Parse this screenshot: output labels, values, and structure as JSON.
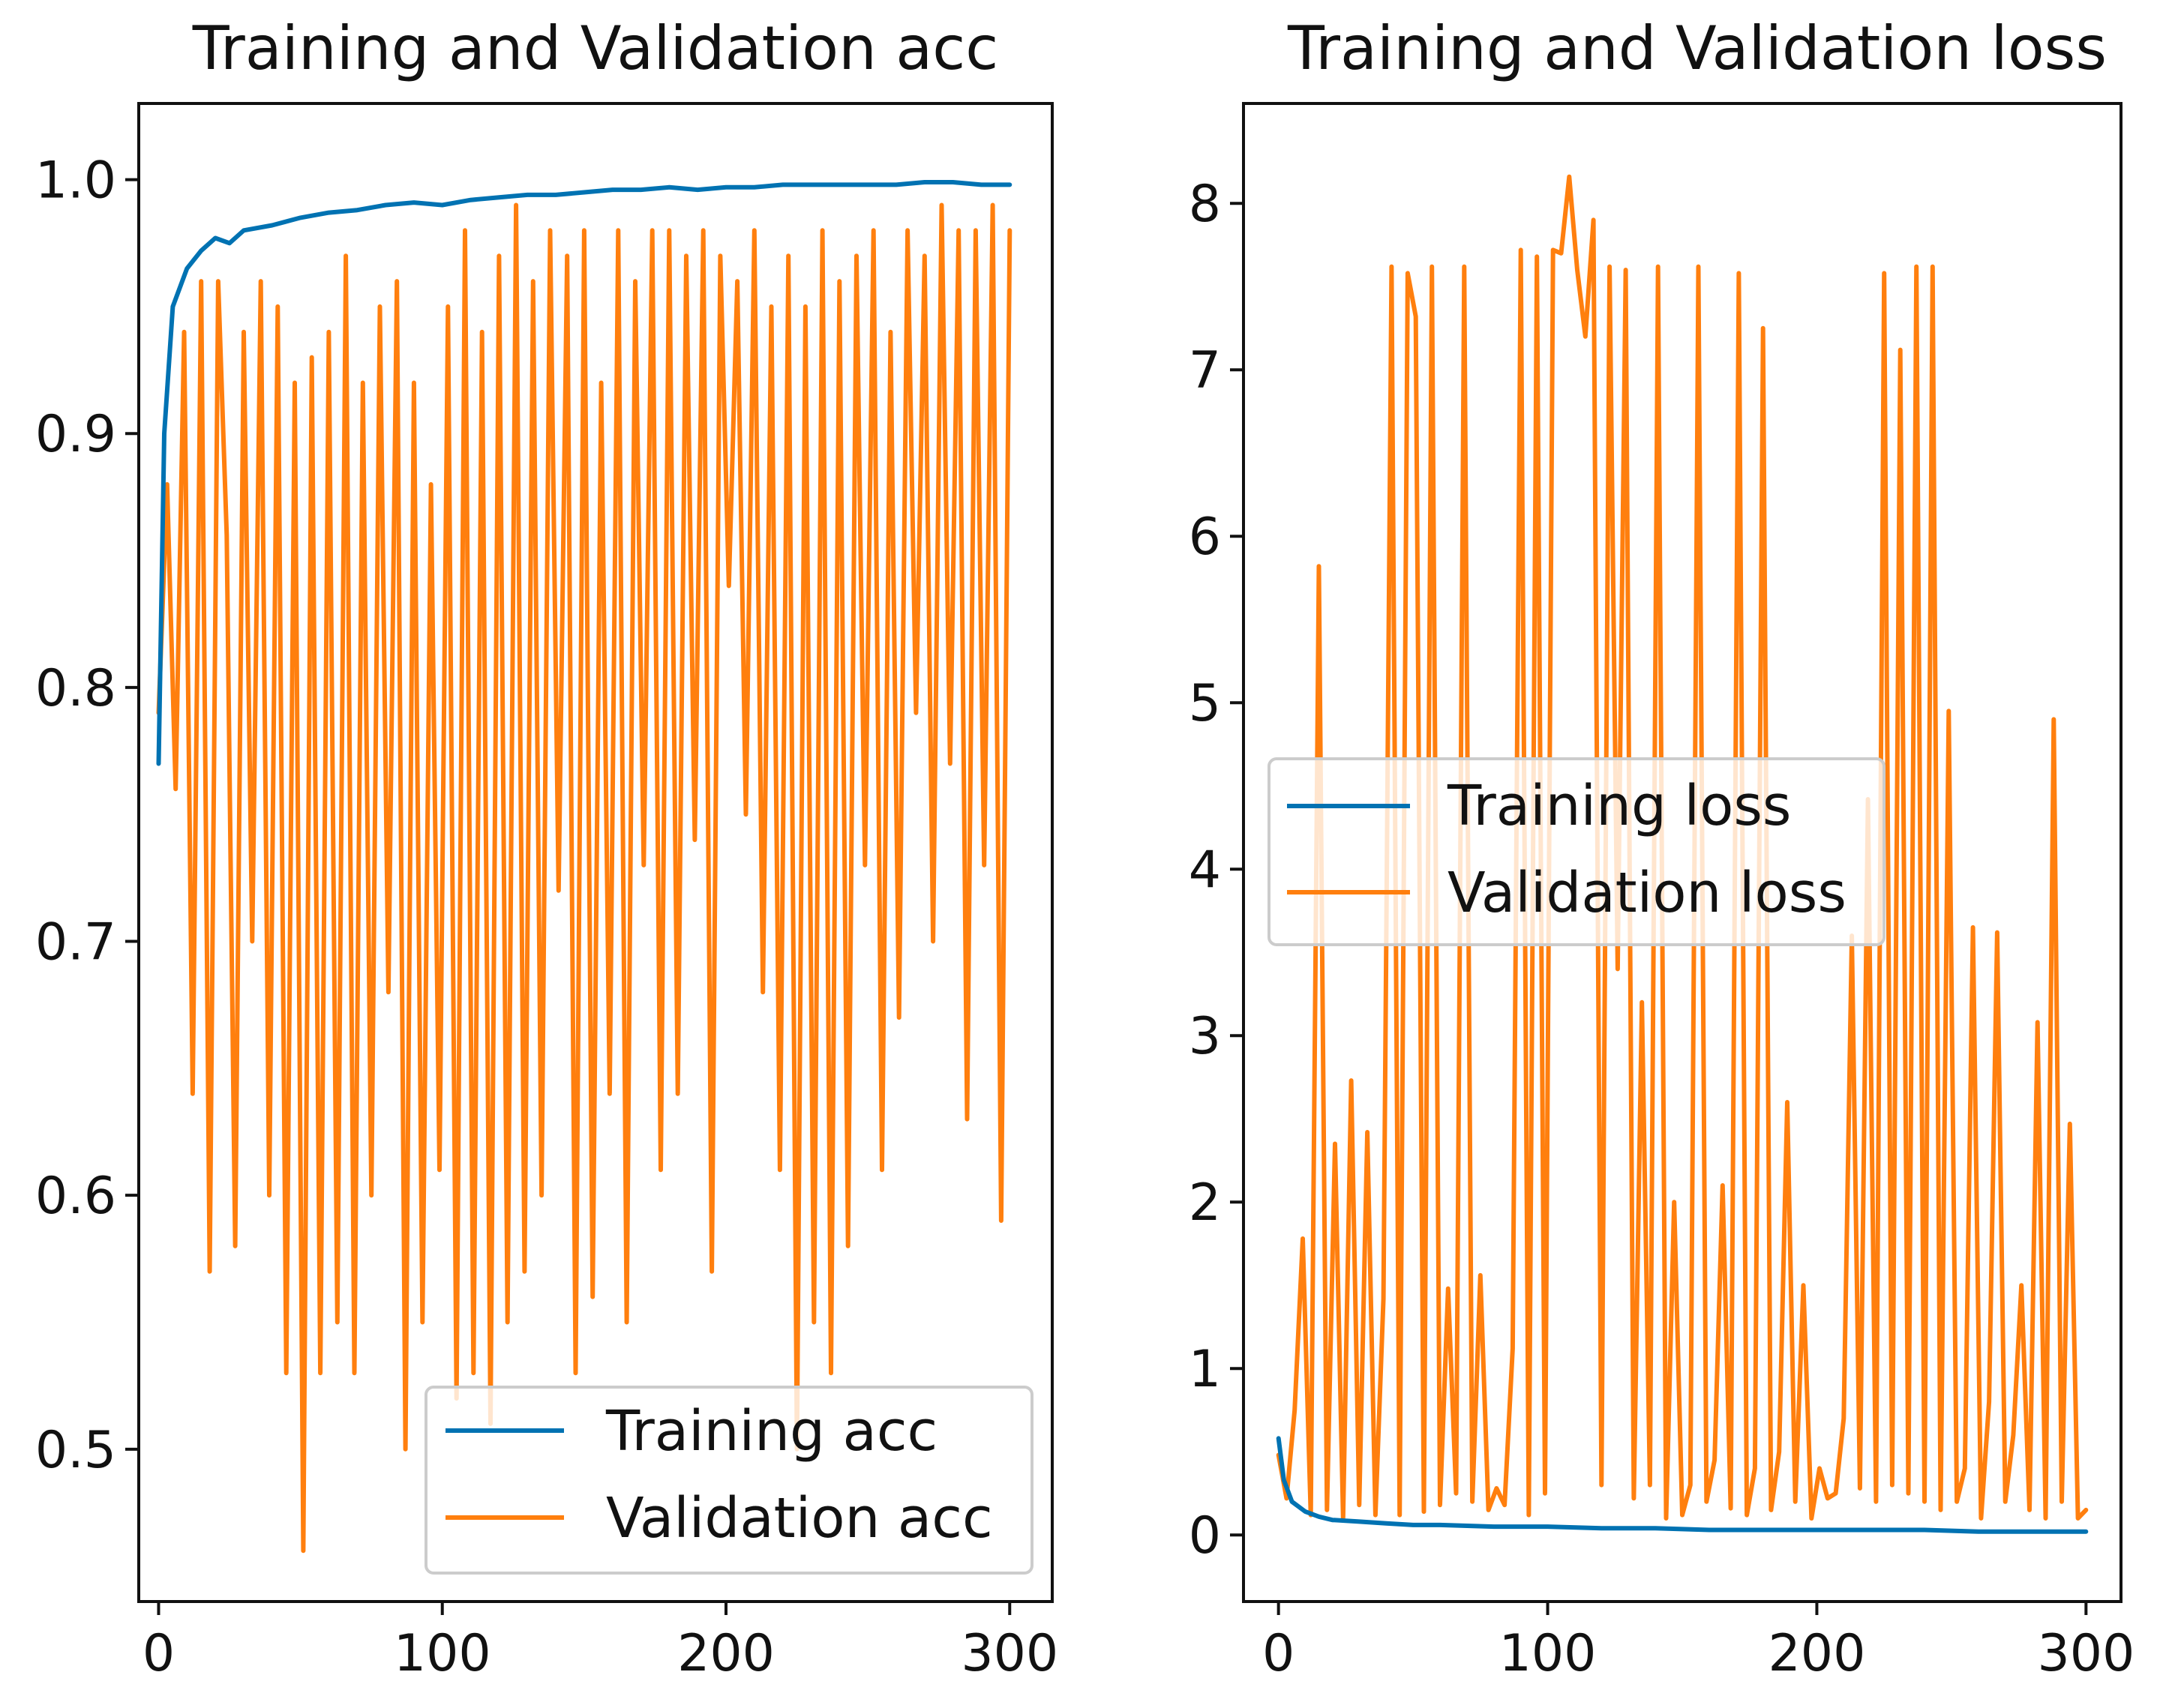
{
  "colors": {
    "training": "#0072b2",
    "validation": "#ff7f0e",
    "axes": "#111111"
  },
  "chart_data": [
    {
      "type": "line",
      "title": "Training and Validation acc",
      "xlabel": "",
      "ylabel": "",
      "xlim": [
        -7,
        315
      ],
      "ylim": [
        0.44,
        1.03
      ],
      "xticks": [
        0,
        100,
        200,
        300
      ],
      "xtick_labels": [
        "0",
        "100",
        "200",
        "300"
      ],
      "yticks": [
        0.5,
        0.6,
        0.7,
        0.8,
        0.9,
        1.0
      ],
      "ytick_labels": [
        "0.5",
        "0.6",
        "0.7",
        "0.8",
        "0.9",
        "1.0"
      ],
      "legend_position": "lower-right",
      "series": [
        {
          "name": "Training acc",
          "x": [
            0,
            2,
            5,
            10,
            15,
            20,
            25,
            30,
            40,
            50,
            60,
            70,
            80,
            90,
            100,
            110,
            120,
            130,
            140,
            150,
            160,
            170,
            180,
            190,
            200,
            210,
            220,
            230,
            240,
            250,
            260,
            270,
            280,
            290,
            300
          ],
          "values": [
            0.77,
            0.9,
            0.95,
            0.965,
            0.972,
            0.977,
            0.975,
            0.98,
            0.982,
            0.985,
            0.987,
            0.988,
            0.99,
            0.991,
            0.99,
            0.992,
            0.993,
            0.994,
            0.994,
            0.995,
            0.996,
            0.996,
            0.997,
            0.996,
            0.997,
            0.997,
            0.998,
            0.998,
            0.998,
            0.998,
            0.998,
            0.999,
            0.999,
            0.998,
            0.998
          ]
        },
        {
          "name": "Validation acc",
          "x": [
            0,
            3,
            6,
            9,
            12,
            15,
            18,
            21,
            24,
            27,
            30,
            33,
            36,
            39,
            42,
            45,
            48,
            51,
            54,
            57,
            60,
            63,
            66,
            69,
            72,
            75,
            78,
            81,
            84,
            87,
            90,
            93,
            96,
            99,
            102,
            105,
            108,
            111,
            114,
            117,
            120,
            123,
            126,
            129,
            132,
            135,
            138,
            141,
            144,
            147,
            150,
            153,
            156,
            159,
            162,
            165,
            168,
            171,
            174,
            177,
            180,
            183,
            186,
            189,
            192,
            195,
            198,
            201,
            204,
            207,
            210,
            213,
            216,
            219,
            222,
            225,
            228,
            231,
            234,
            237,
            240,
            243,
            246,
            249,
            252,
            255,
            258,
            261,
            264,
            267,
            270,
            273,
            276,
            279,
            282,
            285,
            288,
            291,
            294,
            297,
            300
          ],
          "values": [
            0.79,
            0.88,
            0.76,
            0.94,
            0.64,
            0.96,
            0.57,
            0.96,
            0.86,
            0.58,
            0.94,
            0.7,
            0.96,
            0.6,
            0.95,
            0.53,
            0.92,
            0.46,
            0.93,
            0.53,
            0.94,
            0.55,
            0.97,
            0.53,
            0.92,
            0.6,
            0.95,
            0.68,
            0.96,
            0.5,
            0.92,
            0.55,
            0.88,
            0.61,
            0.95,
            0.52,
            0.98,
            0.53,
            0.94,
            0.51,
            0.97,
            0.55,
            0.99,
            0.57,
            0.96,
            0.6,
            0.98,
            0.72,
            0.97,
            0.53,
            0.98,
            0.56,
            0.92,
            0.64,
            0.98,
            0.55,
            0.96,
            0.73,
            0.98,
            0.61,
            0.98,
            0.64,
            0.97,
            0.74,
            0.98,
            0.57,
            0.97,
            0.84,
            0.96,
            0.75,
            0.98,
            0.68,
            0.95,
            0.61,
            0.97,
            0.5,
            0.95,
            0.55,
            0.98,
            0.53,
            0.96,
            0.58,
            0.97,
            0.73,
            0.98,
            0.61,
            0.94,
            0.67,
            0.98,
            0.79,
            0.97,
            0.7,
            0.99,
            0.77,
            0.98,
            0.63,
            0.98,
            0.73,
            0.99,
            0.59,
            0.98
          ]
        }
      ]
    },
    {
      "type": "line",
      "title": "Training and Validation loss",
      "xlabel": "",
      "ylabel": "",
      "xlim": [
        -13,
        313
      ],
      "ylim": [
        -0.4,
        8.6
      ],
      "xticks": [
        0,
        100,
        200,
        300
      ],
      "xtick_labels": [
        "0",
        "100",
        "200",
        "300"
      ],
      "yticks": [
        0,
        1,
        2,
        3,
        4,
        5,
        6,
        7,
        8
      ],
      "ytick_labels": [
        "0",
        "1",
        "2",
        "3",
        "4",
        "5",
        "6",
        "7",
        "8"
      ],
      "legend_position": "center-left",
      "series": [
        {
          "name": "Training loss",
          "x": [
            0,
            2,
            5,
            10,
            15,
            20,
            30,
            40,
            50,
            60,
            80,
            100,
            120,
            140,
            160,
            180,
            200,
            220,
            240,
            260,
            280,
            300
          ],
          "values": [
            0.58,
            0.33,
            0.2,
            0.14,
            0.11,
            0.09,
            0.08,
            0.07,
            0.06,
            0.06,
            0.05,
            0.05,
            0.04,
            0.04,
            0.03,
            0.03,
            0.03,
            0.03,
            0.03,
            0.02,
            0.02,
            0.02
          ]
        },
        {
          "name": "Validation loss",
          "x": [
            0,
            3,
            6,
            9,
            12,
            15,
            18,
            21,
            24,
            27,
            30,
            33,
            36,
            39,
            42,
            45,
            48,
            51,
            54,
            57,
            60,
            63,
            66,
            69,
            72,
            75,
            78,
            81,
            84,
            87,
            90,
            93,
            96,
            99,
            102,
            105,
            108,
            111,
            114,
            117,
            120,
            123,
            126,
            129,
            132,
            135,
            138,
            141,
            144,
            147,
            150,
            153,
            156,
            159,
            162,
            165,
            168,
            171,
            174,
            177,
            180,
            183,
            186,
            189,
            192,
            195,
            198,
            201,
            204,
            207,
            210,
            213,
            216,
            219,
            222,
            225,
            228,
            231,
            234,
            237,
            240,
            243,
            246,
            249,
            252,
            255,
            258,
            261,
            264,
            267,
            270,
            273,
            276,
            279,
            282,
            285,
            288,
            291,
            294,
            297,
            300
          ],
          "values": [
            0.48,
            0.22,
            0.75,
            1.78,
            0.12,
            5.82,
            0.15,
            2.35,
            0.1,
            2.73,
            0.18,
            2.42,
            0.12,
            1.42,
            7.62,
            0.12,
            7.58,
            7.32,
            0.14,
            7.62,
            0.18,
            1.48,
            0.25,
            7.62,
            0.2,
            1.56,
            0.15,
            0.28,
            0.18,
            1.12,
            7.72,
            0.12,
            7.68,
            0.25,
            7.72,
            7.7,
            8.16,
            7.6,
            7.2,
            7.9,
            0.3,
            7.62,
            3.4,
            7.6,
            0.22,
            3.2,
            0.3,
            7.62,
            0.1,
            2.0,
            0.12,
            0.3,
            7.62,
            0.2,
            0.45,
            2.1,
            0.16,
            7.58,
            0.12,
            0.4,
            7.25,
            0.15,
            0.5,
            2.6,
            0.2,
            1.5,
            0.1,
            0.4,
            0.22,
            0.25,
            0.7,
            3.6,
            0.28,
            4.42,
            0.2,
            7.58,
            0.3,
            7.12,
            0.25,
            7.62,
            0.2,
            7.62,
            0.15,
            4.95,
            0.2,
            0.4,
            3.65,
            0.1,
            0.8,
            3.62,
            0.2,
            0.6,
            1.5,
            0.15,
            3.08,
            0.1,
            4.9,
            0.2,
            2.47,
            0.1,
            0.15
          ]
        }
      ]
    }
  ]
}
